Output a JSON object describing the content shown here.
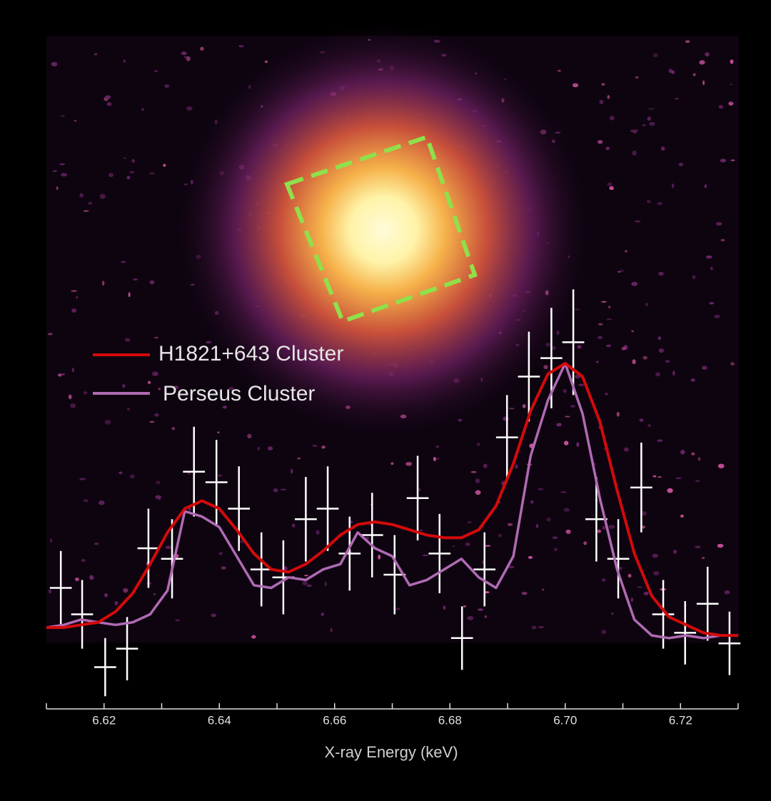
{
  "chart_data": {
    "type": "line",
    "xlabel": "X-ray Energy (keV)",
    "xlim": [
      6.61,
      6.73
    ],
    "xticks": [
      6.62,
      6.64,
      6.66,
      6.68,
      {
        "value": 6.7,
        "label": "6.70"
      },
      6.72
    ],
    "xminorticks": [
      6.61,
      6.63,
      6.65,
      6.67,
      6.69,
      6.71,
      6.73
    ],
    "ylim": [
      -0.3,
      2.2
    ],
    "x": [
      6.61,
      6.613,
      6.616,
      6.619,
      6.622,
      6.625,
      6.628,
      6.631,
      6.634,
      6.637,
      6.64,
      6.643,
      6.646,
      6.649,
      6.652,
      6.655,
      6.658,
      6.661,
      6.664,
      6.667,
      6.67,
      6.673,
      6.676,
      6.679,
      6.682,
      6.685,
      6.688,
      6.691,
      6.694,
      6.697,
      6.7,
      6.703,
      6.706,
      6.709,
      6.712,
      6.715,
      6.718,
      6.721,
      6.724,
      6.727,
      6.73
    ],
    "series": [
      {
        "name": "H1821+643 Cluster",
        "color": "#d40a0a",
        "values": [
          0.0,
          0.0,
          0.01,
          0.02,
          0.06,
          0.13,
          0.24,
          0.36,
          0.45,
          0.48,
          0.45,
          0.37,
          0.28,
          0.22,
          0.21,
          0.24,
          0.29,
          0.35,
          0.39,
          0.4,
          0.39,
          0.37,
          0.35,
          0.34,
          0.34,
          0.37,
          0.46,
          0.62,
          0.82,
          0.96,
          1.0,
          0.95,
          0.78,
          0.52,
          0.28,
          0.12,
          0.04,
          0.01,
          -0.02,
          -0.03,
          -0.03
        ]
      },
      {
        "name": "Perseus Cluster",
        "color": "#b06ab3",
        "values": [
          0.0,
          0.01,
          0.03,
          0.02,
          0.01,
          0.02,
          0.05,
          0.14,
          0.44,
          0.42,
          0.38,
          0.27,
          0.16,
          0.15,
          0.19,
          0.18,
          0.22,
          0.24,
          0.36,
          0.3,
          0.27,
          0.16,
          0.18,
          0.22,
          0.26,
          0.19,
          0.15,
          0.27,
          0.65,
          0.86,
          1.0,
          0.81,
          0.49,
          0.22,
          0.03,
          -0.03,
          -0.04,
          -0.03,
          -0.04,
          -0.03,
          -0.03
        ]
      }
    ],
    "points": {
      "color": "#ffffff",
      "xerr": 0.0019,
      "x": [
        6.6125,
        6.6162,
        6.6202,
        6.624,
        6.6277,
        6.6318,
        6.6356,
        6.6395,
        6.6434,
        6.6473,
        6.6511,
        6.655,
        6.6588,
        6.6626,
        6.6665,
        6.6704,
        6.6744,
        6.6782,
        6.6821,
        6.686,
        6.6899,
        6.6937,
        6.6976,
        6.7014,
        6.7054,
        6.7092,
        6.7132,
        6.717,
        6.7208,
        6.7247,
        6.7285
      ],
      "values": [
        0.15,
        0.05,
        -0.15,
        -0.08,
        0.3,
        0.26,
        0.59,
        0.55,
        0.45,
        0.22,
        0.19,
        0.41,
        0.45,
        0.28,
        0.35,
        0.2,
        0.49,
        0.28,
        -0.04,
        0.22,
        0.72,
        0.95,
        1.02,
        1.08,
        0.41,
        0.26,
        0.53,
        0.05,
        -0.02,
        0.09,
        -0.06
      ],
      "yerr": [
        0.14,
        0.13,
        0.11,
        0.12,
        0.15,
        0.15,
        0.17,
        0.16,
        0.16,
        0.14,
        0.14,
        0.16,
        0.16,
        0.14,
        0.16,
        0.15,
        0.16,
        0.15,
        0.12,
        0.14,
        0.16,
        0.17,
        0.19,
        0.2,
        0.16,
        0.15,
        0.17,
        0.13,
        0.12,
        0.14,
        0.12
      ]
    }
  }
}
